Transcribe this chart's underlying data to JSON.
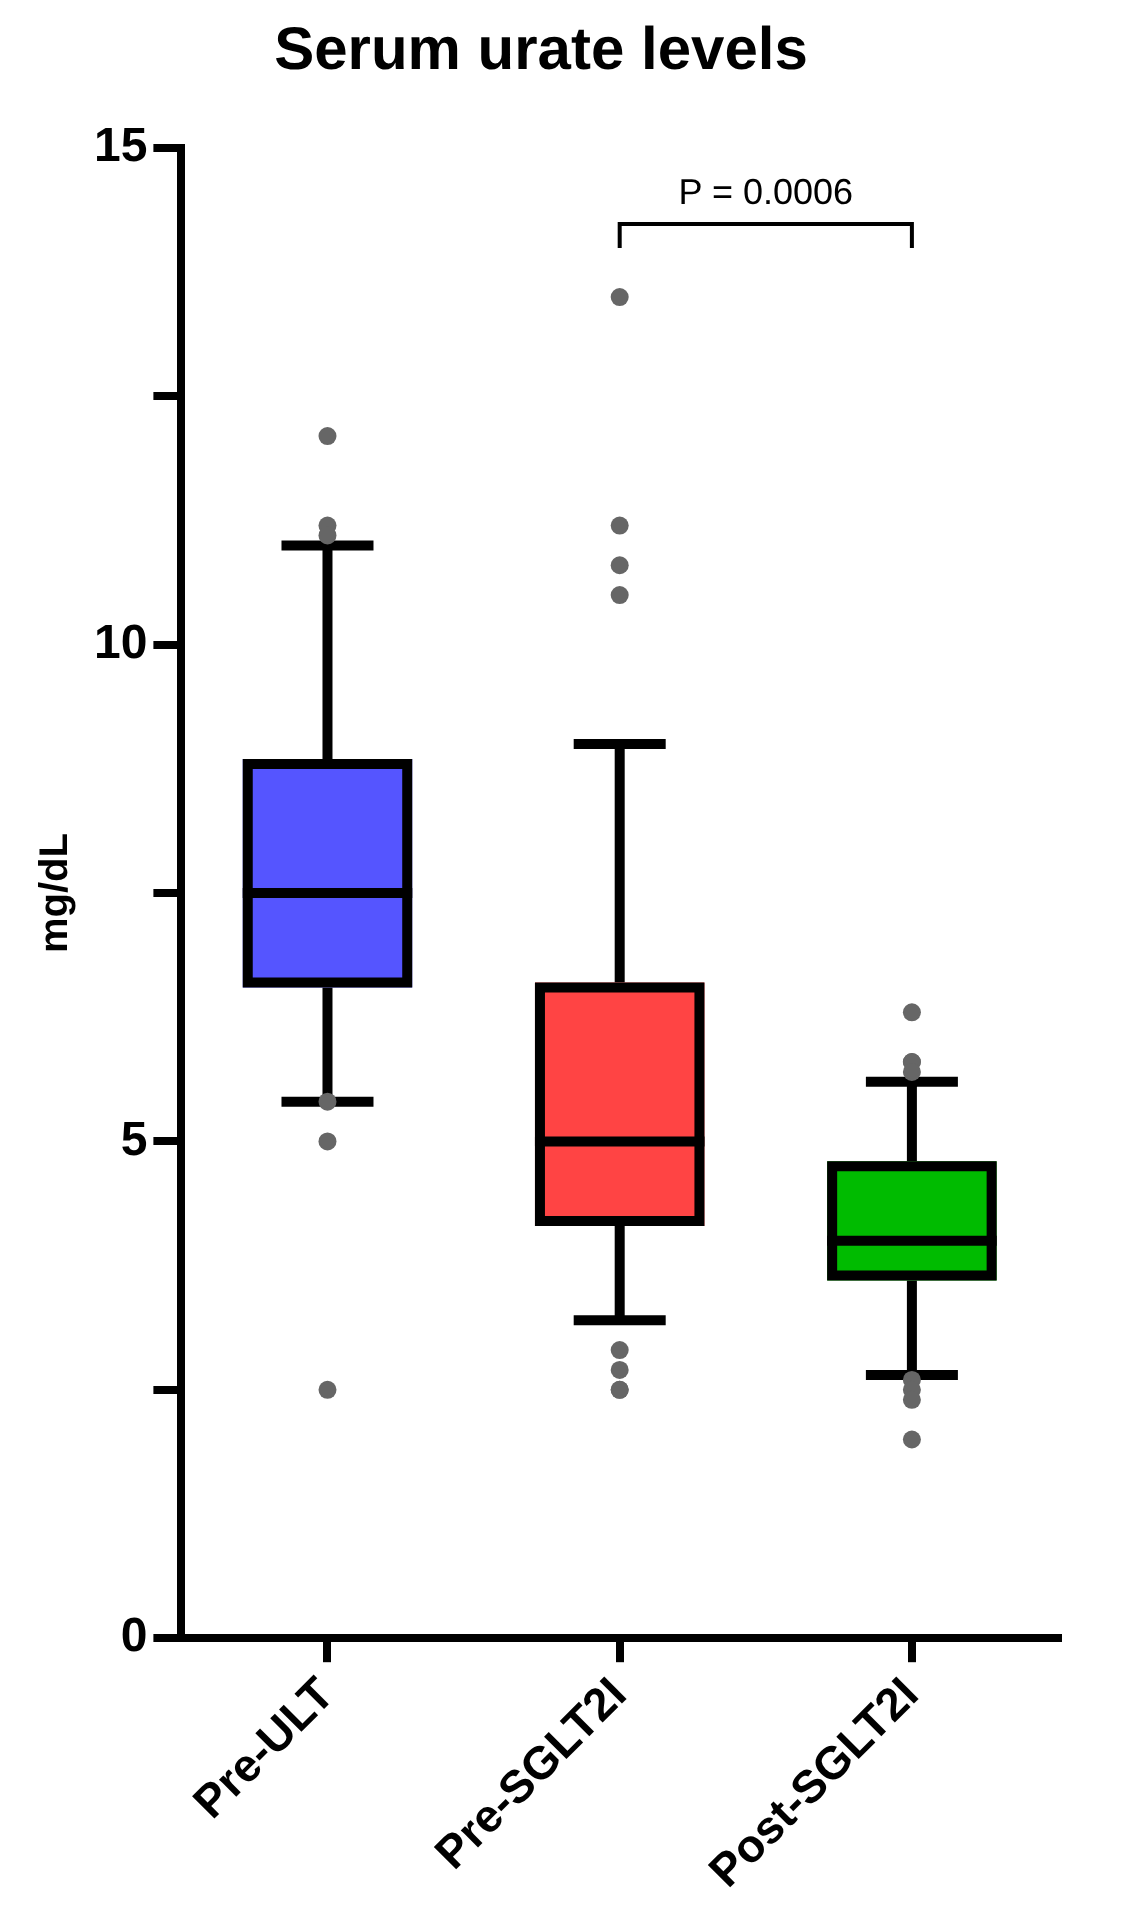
{
  "chart_data": {
    "type": "box",
    "title": "Serum urate levels",
    "ylabel": "mg/dL",
    "categories": [
      "Pre-ULT",
      "Pre-SGLT2I",
      "Post-SGLT2I"
    ],
    "colors": [
      "#5555ff",
      "#ff4444",
      "#00bb00"
    ],
    "boxes": [
      {
        "low": 5.4,
        "q1": 6.55,
        "median": 7.5,
        "q3": 8.85,
        "high": 11.0,
        "outliers": [
          12.1,
          11.2,
          11.1,
          5.4,
          5.0,
          2.5
        ]
      },
      {
        "low": 3.2,
        "q1": 4.15,
        "median": 5.0,
        "q3": 6.6,
        "high": 9.0,
        "outliers": [
          13.5,
          11.2,
          10.8,
          10.5,
          2.9,
          2.7,
          2.5,
          2.5
        ]
      },
      {
        "low": 2.65,
        "q1": 3.6,
        "median": 4.0,
        "q3": 4.8,
        "high": 5.6,
        "outliers": [
          6.3,
          5.8,
          5.8,
          5.7,
          2.6,
          2.5,
          2.4,
          2.0
        ]
      }
    ],
    "ylim": [
      0,
      15
    ],
    "yticks": [
      0,
      {
        "value": 2.5,
        "label": null
      },
      5,
      {
        "value": 7.5,
        "label": null
      },
      10,
      {
        "value": 12.5,
        "label": null
      },
      15
    ],
    "grid": false,
    "legend": false,
    "annotations": [
      "P = 0.0006"
    ]
  }
}
